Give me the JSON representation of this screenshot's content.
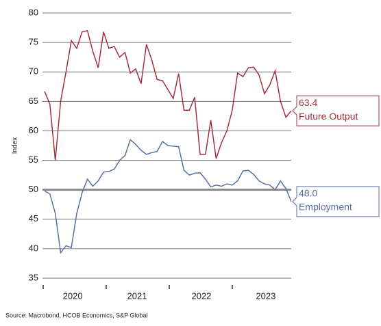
{
  "chart_data": {
    "type": "line",
    "y_label": "Index",
    "source": "Source: Macrobond, HCOB Economics, S&P Global",
    "categories": [
      null,
      null,
      null,
      null,
      null,
      "2020",
      null,
      null,
      null,
      null,
      null,
      null,
      null,
      null,
      null,
      null,
      null,
      "2021",
      null,
      null,
      null,
      null,
      null,
      null,
      null,
      null,
      null,
      null,
      null,
      "2022",
      null,
      null,
      null,
      null,
      null,
      null,
      null,
      null,
      null,
      null,
      null,
      "2023",
      null,
      null,
      null,
      null,
      null
    ],
    "series": [
      {
        "name": "Future Output",
        "color": "#a33040",
        "values": [
          66.7,
          64.5,
          55,
          65,
          70,
          75.3,
          74,
          76.8,
          77,
          73.5,
          70.7,
          76.8,
          74,
          74.3,
          72.5,
          73.3,
          69.8,
          70.5,
          68,
          74.7,
          72,
          68.7,
          68.5,
          67,
          65.5,
          69.7,
          63.5,
          63.5,
          65.7,
          56,
          56,
          61.8,
          55.3,
          58,
          60,
          63.5,
          69.8,
          69.2,
          70.7,
          70.8,
          69.5,
          66.3,
          67.8,
          70.2,
          65,
          62.3,
          63.4
        ]
      },
      {
        "name": "Employment",
        "color": "#5a6ea6",
        "values": [
          49.8,
          49.3,
          46,
          39.3,
          40.5,
          40.2,
          46,
          49.5,
          51.8,
          50.6,
          51.5,
          53,
          53.1,
          53.5,
          55,
          55.8,
          58.5,
          57.7,
          56.7,
          56,
          56.3,
          56.5,
          58.2,
          57.5,
          57.4,
          57.3,
          53.3,
          52.5,
          52.8,
          52.9,
          51.8,
          50.5,
          50.8,
          50.6,
          51,
          50.8,
          51.5,
          53.2,
          53.3,
          52.6,
          51.5,
          51,
          50.8,
          50,
          51.5,
          50.2,
          48.0
        ],
        "value_labels": [
          null,
          null,
          null,
          null,
          null,
          null,
          null,
          null,
          null,
          null,
          null,
          null,
          null,
          null,
          null,
          null,
          null,
          null,
          null,
          null,
          null,
          null,
          null,
          null,
          null,
          null,
          null,
          null,
          null,
          null,
          null,
          null,
          null,
          null,
          null,
          null,
          null,
          null,
          null,
          null,
          null,
          null,
          null,
          null,
          null,
          null,
          "48.0"
        ]
      }
    ],
    "reference_line": 50,
    "ylim": [
      35,
      80
    ],
    "yticks": [
      35,
      40,
      45,
      50,
      55,
      60,
      65,
      70,
      75,
      80
    ],
    "grid": true
  }
}
